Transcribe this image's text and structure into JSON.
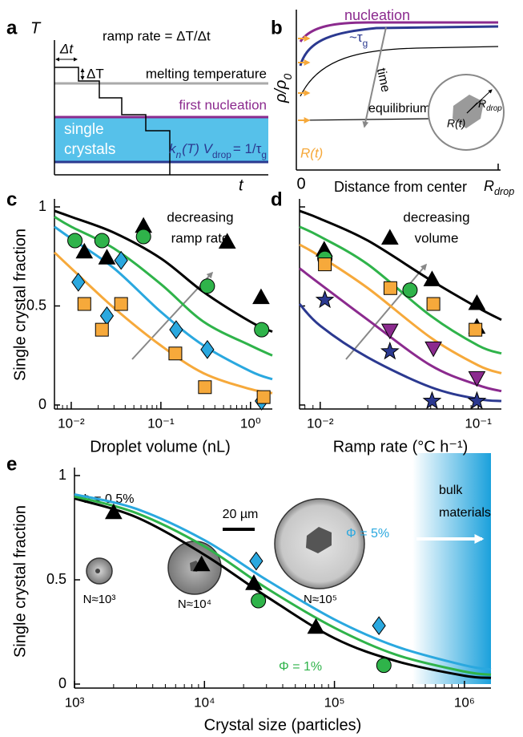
{
  "panel_a": {
    "letter": "a",
    "y_axis": "T",
    "x_axis": "t",
    "ramp_rate": "ramp rate = ΔT/Δt",
    "dt": "Δt",
    "dT": "ΔT",
    "melting": "melting temperature",
    "first_nucleation": "first nucleation",
    "single_crystals": [
      "single",
      "crystals"
    ],
    "rate_eq": [
      "k",
      "n",
      "(T) V",
      "drop",
      "= 1/τ",
      "g"
    ]
  },
  "panel_b": {
    "letter": "b",
    "rho": [
      "ρ/ρ",
      "0"
    ],
    "nucleation": "nucleation",
    "tau": [
      "~τ",
      "g"
    ],
    "time": "time",
    "equilibrium": "equilibrium",
    "r_t_inset": "R(t)",
    "r_drop_inset": [
      "R",
      "drop"
    ],
    "r_t_axis": "R(t)",
    "zero": "0",
    "x_axis": "Distance from center",
    "r_drop_axis": [
      "R",
      "drop"
    ]
  },
  "panel_e_labels": {
    "scale_bar": "20 µm",
    "bulk": [
      "bulk",
      "materials"
    ],
    "n3": "N≈10³",
    "n4": "N≈10⁴",
    "n5": "N≈10⁵",
    "phi_05": "Φ = 0.5%",
    "phi_5": "Φ = 5%",
    "phi_1": "Φ = 1%"
  },
  "chart_data": [
    {
      "panel": "c",
      "type": "scatter",
      "xscale": "log",
      "xlabel": "Droplet volume (nL)",
      "ylabel": "Single crystal fraction",
      "xlim": [
        0.0065,
        1.75
      ],
      "ylim": [
        0,
        1
      ],
      "xticks": [
        {
          "value": 0.01,
          "label": "10⁻²"
        },
        {
          "value": 0.1,
          "label": "10⁻¹"
        },
        {
          "value": 1,
          "label": "10⁰"
        }
      ],
      "xminor": [
        0.007,
        0.008,
        0.009,
        0.02,
        0.03,
        0.04,
        0.05,
        0.06,
        0.07,
        0.08,
        0.09,
        0.2,
        0.3,
        0.4,
        0.5,
        0.6,
        0.7,
        0.8,
        0.9
      ],
      "yticks": [
        0,
        0.5,
        1
      ],
      "annotation": [
        "decreasing",
        "ramp rate"
      ],
      "curves": [
        {
          "color": "#000000",
          "x": [
            0.0065,
            0.01,
            0.03,
            0.1,
            0.3,
            1,
            1.75
          ],
          "values": [
            0.98,
            0.95,
            0.87,
            0.74,
            0.57,
            0.42,
            0.37
          ]
        },
        {
          "color": "#2fb34a",
          "x": [
            0.0065,
            0.01,
            0.03,
            0.1,
            0.3,
            1,
            1.75
          ],
          "values": [
            0.95,
            0.9,
            0.79,
            0.61,
            0.42,
            0.3,
            0.25
          ]
        },
        {
          "color": "#2aa8df",
          "x": [
            0.0065,
            0.01,
            0.03,
            0.1,
            0.3,
            1,
            1.75
          ],
          "values": [
            0.9,
            0.84,
            0.69,
            0.47,
            0.3,
            0.17,
            0.13
          ]
        },
        {
          "color": "#f6a93b",
          "x": [
            0.0065,
            0.01,
            0.03,
            0.1,
            0.3,
            1,
            1.75
          ],
          "values": [
            0.77,
            0.69,
            0.49,
            0.3,
            0.16,
            0.08,
            0.06
          ]
        }
      ],
      "series": [
        {
          "color": "#000000",
          "marker": "triangle",
          "x": [
            0.014,
            0.025,
            0.064,
            0.55,
            1.31
          ],
          "values": [
            0.77,
            0.74,
            0.9,
            0.82,
            0.54
          ]
        },
        {
          "color": "#2fb34a",
          "marker": "circle",
          "x": [
            0.011,
            0.022,
            0.064,
            0.33,
            1.33
          ],
          "values": [
            0.83,
            0.83,
            0.85,
            0.6,
            0.38
          ]
        },
        {
          "color": "#2aa8df",
          "marker": "diamond",
          "x": [
            0.012,
            0.025,
            0.036,
            0.148,
            0.33,
            1.33
          ],
          "values": [
            0.62,
            0.45,
            0.73,
            0.38,
            0.28,
            0.02
          ]
        },
        {
          "color": "#f6a93b",
          "marker": "square",
          "x": [
            0.014,
            0.022,
            0.036,
            0.145,
            0.31,
            1.4
          ],
          "values": [
            0.51,
            0.38,
            0.51,
            0.26,
            0.09,
            0.04
          ]
        }
      ]
    },
    {
      "panel": "d",
      "type": "scatter",
      "xscale": "log",
      "xlabel": "Ramp rate (°C h⁻¹)",
      "xlim": [
        0.0074,
        0.14
      ],
      "ylim": [
        0,
        1
      ],
      "xticks": [
        {
          "value": 0.01,
          "label": "10⁻²"
        },
        {
          "value": 0.1,
          "label": "10⁻¹"
        }
      ],
      "xminor": [
        0.008,
        0.009,
        0.02,
        0.03,
        0.04,
        0.05,
        0.06,
        0.07,
        0.08,
        0.09
      ],
      "yticks": [
        0,
        0.5,
        1
      ],
      "ytick_labels": false,
      "annotation": [
        "decreasing",
        "volume"
      ],
      "curves": [
        {
          "color": "#000000",
          "x": [
            0.0074,
            0.01,
            0.02,
            0.05,
            0.1,
            0.14
          ],
          "values": [
            0.98,
            0.94,
            0.83,
            0.63,
            0.49,
            0.43
          ]
        },
        {
          "color": "#2fb34a",
          "x": [
            0.0074,
            0.01,
            0.02,
            0.05,
            0.1,
            0.14
          ],
          "values": [
            0.9,
            0.85,
            0.71,
            0.45,
            0.3,
            0.26
          ]
        },
        {
          "color": "#f6a93b",
          "x": [
            0.0074,
            0.01,
            0.02,
            0.05,
            0.1,
            0.14
          ],
          "values": [
            0.81,
            0.75,
            0.59,
            0.34,
            0.2,
            0.16
          ]
        },
        {
          "color": "#8b2a8e",
          "x": [
            0.0074,
            0.01,
            0.02,
            0.05,
            0.1,
            0.14
          ],
          "values": [
            0.69,
            0.61,
            0.43,
            0.2,
            0.1,
            0.07
          ]
        },
        {
          "color": "#2b3990",
          "x": [
            0.0074,
            0.01,
            0.02,
            0.05,
            0.1,
            0.14
          ],
          "values": [
            0.51,
            0.4,
            0.24,
            0.09,
            0.03,
            0.02
          ]
        }
      ],
      "series": [
        {
          "color": "#000000",
          "marker": "triangle",
          "x": [
            0.0106,
            0.0276,
            0.051,
            0.098,
            0.098
          ],
          "values": [
            0.78,
            0.84,
            0.63,
            0.51,
            0.39
          ]
        },
        {
          "color": "#2fb34a",
          "marker": "circle",
          "x": [
            0.0107,
            0.037
          ],
          "values": [
            0.74,
            0.58
          ]
        },
        {
          "color": "#f6a93b",
          "marker": "square",
          "x": [
            0.0107,
            0.0278,
            0.052,
            0.096
          ],
          "values": [
            0.71,
            0.59,
            0.51,
            0.38
          ]
        },
        {
          "color": "#8b2a8e",
          "marker": "triangle-down",
          "x": [
            0.0276,
            0.052,
            0.098
          ],
          "values": [
            0.38,
            0.29,
            0.14
          ]
        },
        {
          "color": "#2b3990",
          "marker": "star",
          "x": [
            0.0107,
            0.0276,
            0.051,
            0.098
          ],
          "values": [
            0.53,
            0.27,
            0.02,
            0.02
          ]
        }
      ]
    },
    {
      "panel": "e",
      "type": "scatter",
      "xscale": "log",
      "xlabel": "Crystal size (particles)",
      "ylabel": "Single crystal fraction",
      "xlim": [
        1000,
        1600000
      ],
      "ylim": [
        0,
        1
      ],
      "xticks": [
        {
          "value": 1000,
          "label": "10³"
        },
        {
          "value": 10000,
          "label": "10⁴"
        },
        {
          "value": 100000,
          "label": "10⁵"
        },
        {
          "value": 1000000,
          "label": "10⁶"
        }
      ],
      "xminor": [
        2000,
        3000,
        4000,
        5000,
        6000,
        7000,
        8000,
        9000,
        20000,
        30000,
        40000,
        50000,
        60000,
        70000,
        80000,
        90000,
        200000,
        300000,
        400000,
        500000,
        600000,
        700000,
        800000,
        900000
      ],
      "yticks": [
        0,
        0.5,
        1
      ],
      "curves": [
        {
          "color": "#000000",
          "x": [
            1000,
            3000,
            10000,
            30000,
            100000,
            300000,
            1000000,
            1600000
          ],
          "values": [
            0.89,
            0.8,
            0.62,
            0.42,
            0.22,
            0.11,
            0.04,
            0.03
          ]
        },
        {
          "color": "#2fb34a",
          "x": [
            1000,
            3000,
            10000,
            30000,
            100000,
            300000,
            1000000,
            1600000
          ],
          "values": [
            0.9,
            0.82,
            0.66,
            0.46,
            0.27,
            0.14,
            0.06,
            0.045
          ]
        },
        {
          "color": "#2aa8df",
          "x": [
            1000,
            3000,
            10000,
            30000,
            100000,
            300000,
            1000000,
            1600000
          ],
          "values": [
            0.91,
            0.84,
            0.69,
            0.5,
            0.31,
            0.18,
            0.09,
            0.07
          ]
        }
      ],
      "series": [
        {
          "color": "#000000",
          "marker": "triangle",
          "x": [
            2000,
            9500,
            24000,
            72000
          ],
          "values": [
            0.82,
            0.57,
            0.48,
            0.27
          ]
        },
        {
          "color": "#2fb34a",
          "marker": "circle",
          "x": [
            26000,
            240000
          ],
          "values": [
            0.4,
            0.09
          ]
        },
        {
          "color": "#2aa8df",
          "marker": "diamond",
          "x": [
            25000,
            220000
          ],
          "values": [
            0.59,
            0.28
          ]
        }
      ]
    }
  ]
}
